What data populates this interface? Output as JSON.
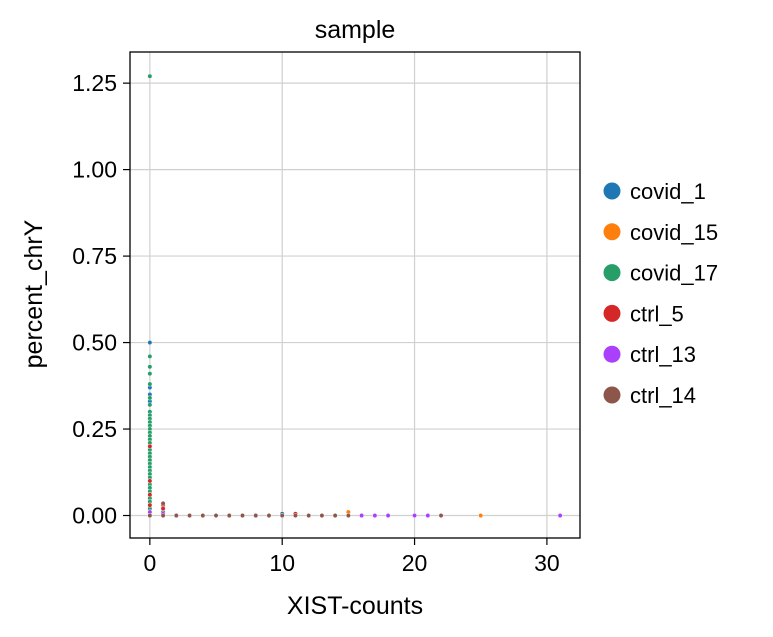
{
  "chart_data": {
    "type": "scatter",
    "title": "sample",
    "xlabel": "XIST-counts",
    "ylabel": "percent_chrY",
    "xlim": [
      -1.5,
      32.5
    ],
    "ylim": [
      -0.065,
      1.34
    ],
    "xticks": [
      0,
      10,
      20,
      30
    ],
    "xtick_labels": [
      "0",
      "10",
      "20",
      "30"
    ],
    "yticks": [
      0.0,
      0.25,
      0.5,
      0.75,
      1.0,
      1.25
    ],
    "ytick_labels": [
      "0.00",
      "0.25",
      "0.50",
      "0.75",
      "1.00",
      "1.25"
    ],
    "grid": true,
    "legend_position": "right",
    "series": [
      {
        "name": "covid_1",
        "color": "#1f77b4",
        "points": [
          [
            0,
            0.5
          ],
          [
            0,
            0.37
          ],
          [
            0,
            0.35
          ],
          [
            0,
            0.33
          ],
          [
            0,
            0.3
          ],
          [
            0,
            0.27
          ],
          [
            0,
            0.26
          ],
          [
            0,
            0.24
          ],
          [
            0,
            0.22
          ],
          [
            0,
            0.2
          ],
          [
            0,
            0.18
          ],
          [
            0,
            0.16
          ],
          [
            0,
            0.12
          ],
          [
            0,
            0.08
          ],
          [
            1,
            0.01
          ],
          [
            2,
            0.0
          ],
          [
            3,
            0.0
          ],
          [
            5,
            0.0
          ],
          [
            8,
            0.0
          ],
          [
            10,
            0.005
          ]
        ]
      },
      {
        "name": "covid_15",
        "color": "#ff7f0e",
        "points": [
          [
            0,
            0.05
          ],
          [
            0,
            0.02
          ],
          [
            1,
            0.02
          ],
          [
            4,
            0.0
          ],
          [
            7,
            0.0
          ],
          [
            10,
            0.0
          ],
          [
            15,
            0.01
          ],
          [
            25,
            0.0
          ]
        ]
      },
      {
        "name": "covid_17",
        "color": "#279e68",
        "points": [
          [
            0,
            1.27
          ],
          [
            0,
            0.46
          ],
          [
            0,
            0.43
          ],
          [
            0,
            0.41
          ],
          [
            0,
            0.38
          ],
          [
            0,
            0.34
          ],
          [
            0,
            0.32
          ],
          [
            0,
            0.3
          ],
          [
            0,
            0.29
          ],
          [
            0,
            0.28
          ],
          [
            0,
            0.27
          ],
          [
            0,
            0.26
          ],
          [
            0,
            0.25
          ],
          [
            0,
            0.24
          ],
          [
            0,
            0.23
          ],
          [
            0,
            0.22
          ],
          [
            0,
            0.21
          ],
          [
            0,
            0.2
          ],
          [
            0,
            0.19
          ],
          [
            0,
            0.18
          ],
          [
            0,
            0.17
          ],
          [
            0,
            0.16
          ],
          [
            0,
            0.15
          ],
          [
            0,
            0.14
          ],
          [
            0,
            0.13
          ],
          [
            0,
            0.12
          ],
          [
            0,
            0.11
          ],
          [
            0,
            0.1
          ],
          [
            0,
            0.09
          ],
          [
            0,
            0.08
          ],
          [
            0,
            0.07
          ],
          [
            0,
            0.06
          ],
          [
            0,
            0.05
          ],
          [
            0,
            0.04
          ],
          [
            0,
            0.03
          ],
          [
            0,
            0.02
          ],
          [
            0,
            0.01
          ],
          [
            0,
            0.0
          ],
          [
            1,
            0.0
          ],
          [
            2,
            0.0
          ],
          [
            6,
            0.0
          ],
          [
            9,
            0.0
          ],
          [
            12,
            0.0
          ],
          [
            14,
            0.0
          ]
        ]
      },
      {
        "name": "ctrl_5",
        "color": "#d62728",
        "points": [
          [
            0,
            0.2
          ],
          [
            0,
            0.1
          ],
          [
            0,
            0.06
          ],
          [
            0,
            0.03
          ],
          [
            1,
            0.03
          ],
          [
            1,
            0.02
          ],
          [
            3,
            0.0
          ],
          [
            6,
            0.0
          ],
          [
            11,
            0.005
          ],
          [
            13,
            0.0
          ]
        ]
      },
      {
        "name": "ctrl_13",
        "color": "#aa40fc",
        "points": [
          [
            0,
            0.01
          ],
          [
            1,
            0.005
          ],
          [
            16,
            0.0
          ],
          [
            17,
            0.0
          ],
          [
            18,
            0.0
          ],
          [
            20,
            0.0
          ],
          [
            21,
            0.0
          ],
          [
            31,
            0.0
          ]
        ]
      },
      {
        "name": "ctrl_14",
        "color": "#8c564b",
        "points": [
          [
            0,
            0.0
          ],
          [
            1,
            0.035
          ],
          [
            1,
            0.0
          ],
          [
            2,
            0.0
          ],
          [
            3,
            0.0
          ],
          [
            4,
            0.0
          ],
          [
            5,
            0.0
          ],
          [
            6,
            0.0
          ],
          [
            7,
            0.0
          ],
          [
            8,
            0.0
          ],
          [
            9,
            0.0
          ],
          [
            10,
            0.0
          ],
          [
            11,
            0.0
          ],
          [
            12,
            0.0
          ],
          [
            13,
            0.0
          ],
          [
            14,
            0.0
          ],
          [
            15,
            0.0
          ],
          [
            22,
            0.0
          ]
        ]
      }
    ]
  }
}
